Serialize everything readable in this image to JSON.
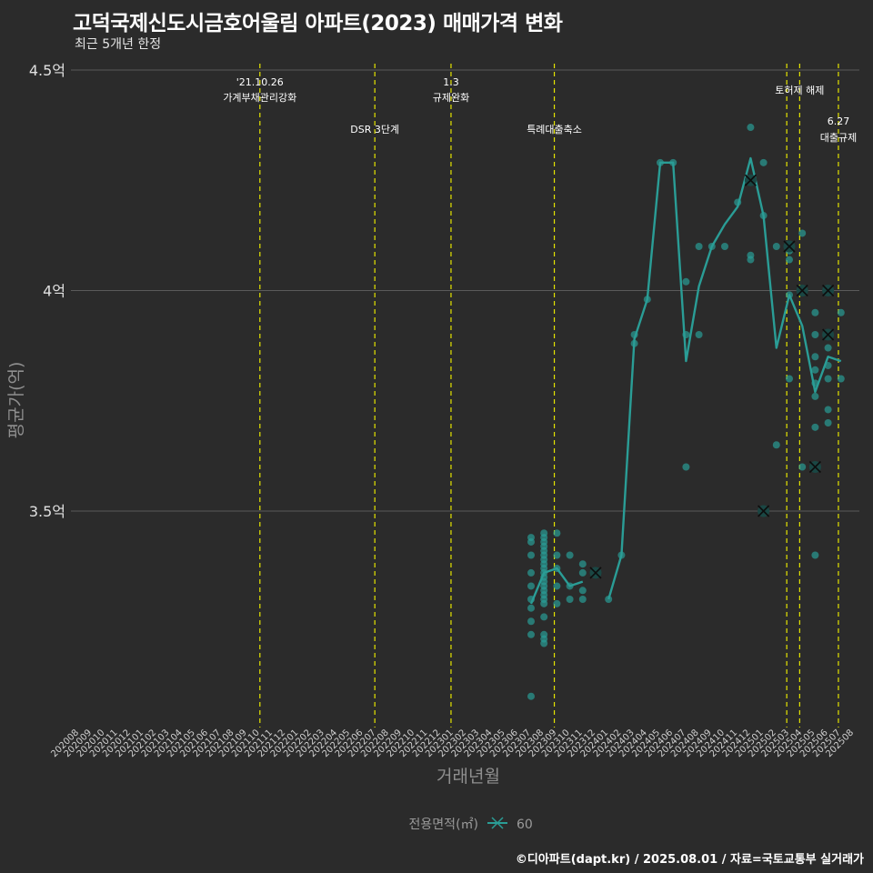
{
  "title": "고덕국제신도시금호어울림 아파트(2023) 매매가격 변화",
  "subtitle": "최근 5개년 한정",
  "footer": "©디아파트(dapt.kr) / 2025.08.01 / 자료=국토교통부 실거래가",
  "colors": {
    "background": "#2b2b2b",
    "grid": "#5a5a5a",
    "series": "#2a9d96",
    "event_line": "#e6e600"
  },
  "chart_data": {
    "type": "line",
    "xlabel": "거래년월",
    "ylabel": "평균가(억)",
    "y_unit": "억",
    "ylim": [
      3.0,
      4.5
    ],
    "y_ticks": [
      {
        "value": 3.5,
        "label": "3.5억"
      },
      {
        "value": 4.0,
        "label": "4억"
      },
      {
        "value": 4.5,
        "label": "4.5억"
      }
    ],
    "x_months": [
      "202008",
      "202009",
      "202010",
      "202011",
      "202012",
      "202101",
      "202102",
      "202103",
      "202104",
      "202105",
      "202106",
      "202107",
      "202108",
      "202109",
      "202110",
      "202111",
      "202112",
      "202201",
      "202202",
      "202203",
      "202204",
      "202205",
      "202206",
      "202207",
      "202208",
      "202209",
      "202210",
      "202211",
      "202212",
      "202301",
      "202302",
      "202303",
      "202304",
      "202305",
      "202306",
      "202307",
      "202308",
      "202309",
      "202310",
      "202311",
      "202312",
      "202401",
      "202402",
      "202403",
      "202404",
      "202405",
      "202406",
      "202407",
      "202408",
      "202409",
      "202410",
      "202411",
      "202412",
      "202501",
      "202502",
      "202503",
      "202504",
      "202505",
      "202506",
      "202507",
      "202508"
    ],
    "events": [
      {
        "x": 14.0,
        "label1": "'21.10.26",
        "label2": "가계부채관리강화"
      },
      {
        "x": 22.9,
        "label1": "",
        "label2": "DSR 3단계"
      },
      {
        "x": 28.8,
        "label1": "1.3",
        "label2": "규제완화"
      },
      {
        "x": 36.8,
        "label1": "",
        "label2": "특례대출축소"
      },
      {
        "x": 54.8,
        "label1": "",
        "label2": ""
      },
      {
        "x": 55.8,
        "label1": "토허제 해제",
        "label2": ""
      },
      {
        "x": 58.8,
        "label1": "6.27",
        "label2": "대출규제"
      }
    ],
    "legend": {
      "title": "전용면적(㎡)",
      "entries": [
        "60"
      ]
    },
    "series": [
      {
        "name": "60",
        "line": [
          [
            35,
            3.29
          ],
          [
            36,
            3.36
          ],
          [
            37,
            3.37
          ],
          [
            38,
            3.33
          ],
          [
            39,
            3.34
          ],
          [
            41,
            3.3
          ],
          [
            42,
            3.4
          ],
          [
            43,
            3.89
          ],
          [
            44,
            3.98
          ],
          [
            45,
            4.29
          ],
          [
            46,
            4.29
          ],
          [
            47,
            3.84
          ],
          [
            48,
            4.01
          ],
          [
            49,
            4.1
          ],
          [
            50,
            4.15
          ],
          [
            51,
            4.19
          ],
          [
            52,
            4.3
          ],
          [
            53,
            4.17
          ],
          [
            54,
            3.87
          ],
          [
            55,
            3.99
          ],
          [
            56,
            3.92
          ],
          [
            57,
            3.77
          ],
          [
            58,
            3.85
          ],
          [
            59,
            3.84
          ]
        ],
        "points": [
          [
            35,
            3.08
          ],
          [
            35,
            3.22
          ],
          [
            35,
            3.25
          ],
          [
            35,
            3.28
          ],
          [
            35,
            3.3
          ],
          [
            35,
            3.33
          ],
          [
            35,
            3.36
          ],
          [
            35,
            3.4
          ],
          [
            35,
            3.43
          ],
          [
            35,
            3.44
          ],
          [
            36,
            3.2
          ],
          [
            36,
            3.21
          ],
          [
            36,
            3.22
          ],
          [
            36,
            3.26
          ],
          [
            36,
            3.29
          ],
          [
            36,
            3.3
          ],
          [
            36,
            3.31
          ],
          [
            36,
            3.32
          ],
          [
            36,
            3.33
          ],
          [
            36,
            3.34
          ],
          [
            36,
            3.35
          ],
          [
            36,
            3.36
          ],
          [
            36,
            3.37
          ],
          [
            36,
            3.38
          ],
          [
            36,
            3.39
          ],
          [
            36,
            3.4
          ],
          [
            36,
            3.41
          ],
          [
            36,
            3.42
          ],
          [
            36,
            3.43
          ],
          [
            36,
            3.44
          ],
          [
            36,
            3.45
          ],
          [
            37,
            3.29
          ],
          [
            37,
            3.33
          ],
          [
            37,
            3.37
          ],
          [
            37,
            3.4
          ],
          [
            37,
            3.45
          ],
          [
            38,
            3.3
          ],
          [
            38,
            3.33
          ],
          [
            38,
            3.4
          ],
          [
            39,
            3.3
          ],
          [
            39,
            3.32
          ],
          [
            39,
            3.36
          ],
          [
            39,
            3.38
          ],
          [
            41,
            3.3
          ],
          [
            42,
            3.4
          ],
          [
            43,
            3.88
          ],
          [
            43,
            3.9
          ],
          [
            44,
            3.98
          ],
          [
            45,
            4.29
          ],
          [
            46,
            4.29
          ],
          [
            47,
            3.6
          ],
          [
            47,
            3.9
          ],
          [
            47,
            4.02
          ],
          [
            48,
            3.9
          ],
          [
            48,
            4.1
          ],
          [
            49,
            4.1
          ],
          [
            50,
            4.1
          ],
          [
            51,
            4.2
          ],
          [
            52,
            4.07
          ],
          [
            52,
            4.08
          ],
          [
            52,
            4.37
          ],
          [
            53,
            4.29
          ],
          [
            53,
            4.17
          ],
          [
            54,
            3.65
          ],
          [
            54,
            4.1
          ],
          [
            55,
            3.8
          ],
          [
            55,
            3.99
          ],
          [
            55,
            4.07
          ],
          [
            55,
            4.09
          ],
          [
            56,
            3.6
          ],
          [
            56,
            4.13
          ],
          [
            57,
            3.4
          ],
          [
            57,
            3.69
          ],
          [
            57,
            3.76
          ],
          [
            57,
            3.79
          ],
          [
            57,
            3.82
          ],
          [
            57,
            3.85
          ],
          [
            57,
            3.9
          ],
          [
            57,
            3.95
          ],
          [
            58,
            3.7
          ],
          [
            58,
            3.73
          ],
          [
            58,
            3.8
          ],
          [
            58,
            3.83
          ],
          [
            58,
            3.87
          ],
          [
            59,
            3.8
          ],
          [
            59,
            3.95
          ]
        ],
        "x_marks": [
          [
            40,
            3.36
          ],
          [
            52,
            4.25
          ],
          [
            53,
            3.5
          ],
          [
            55,
            4.1
          ],
          [
            56,
            4.0
          ],
          [
            57,
            3.6
          ],
          [
            58,
            3.9
          ],
          [
            58,
            4.0
          ]
        ]
      }
    ]
  }
}
